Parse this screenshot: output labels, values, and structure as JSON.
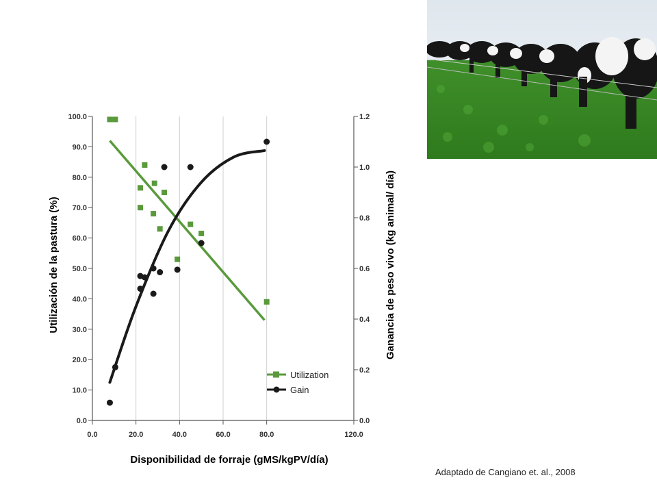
{
  "chart_data": {
    "type": "scatter",
    "xlabel": "Disponibilidad de  forraje (gMS/kgPV/día)",
    "ylabel": "Utilización de la pastura (%)",
    "y2label": "Ganancia de peso vivo (kg animal/ día)",
    "xlim": [
      0,
      120
    ],
    "ylim": [
      0,
      100
    ],
    "y2lim": [
      0,
      1.2
    ],
    "x_ticks": [
      "0.0",
      "20.0",
      "40.0",
      "60.0",
      "80.0",
      "120.0"
    ],
    "x_tick_values": [
      0,
      20,
      40,
      60,
      80,
      120
    ],
    "y_ticks": [
      "0.0",
      "10.0",
      "20.0",
      "30.0",
      "40.0",
      "50.0",
      "60.0",
      "70.0",
      "80.0",
      "90.0",
      "100.0"
    ],
    "y_tick_values": [
      0,
      10,
      20,
      30,
      40,
      50,
      60,
      70,
      80,
      90,
      100
    ],
    "y2_ticks": [
      "0.0",
      "0.2",
      "0.4",
      "0.6",
      "0.8",
      "1.0",
      "1.2"
    ],
    "y2_tick_values": [
      0,
      0.2,
      0.4,
      0.6,
      0.8,
      1.0,
      1.2
    ],
    "legend_position": "bottom-right",
    "series": [
      {
        "name": "Utilization",
        "axis": "left",
        "color": "#5a9a3c",
        "marker": "square",
        "points": [
          [
            8,
            99
          ],
          [
            10.5,
            99
          ],
          [
            22,
            76.5
          ],
          [
            22,
            70
          ],
          [
            24,
            84
          ],
          [
            28,
            68
          ],
          [
            28.5,
            78
          ],
          [
            31,
            63
          ],
          [
            33,
            75
          ],
          [
            39,
            53
          ],
          [
            45,
            64.5
          ],
          [
            50,
            61.5
          ],
          [
            80,
            39
          ]
        ],
        "trend": [
          [
            8,
            92
          ],
          [
            79,
            33
          ]
        ]
      },
      {
        "name": "Gain",
        "axis": "right",
        "color": "#1a1a1a",
        "marker": "circle",
        "points": [
          [
            8,
            0.07
          ],
          [
            10.5,
            0.21
          ],
          [
            22,
            0.57
          ],
          [
            22,
            0.52
          ],
          [
            24,
            0.565
          ],
          [
            28,
            0.6
          ],
          [
            28,
            0.5
          ],
          [
            31,
            0.585
          ],
          [
            33,
            1.0
          ],
          [
            39,
            0.595
          ],
          [
            45,
            1.0
          ],
          [
            50,
            0.7
          ],
          [
            80,
            1.1
          ]
        ],
        "trend": [
          [
            8,
            0.15
          ],
          [
            20,
            0.45
          ],
          [
            35,
            0.75
          ],
          [
            50,
            0.94
          ],
          [
            65,
            1.04
          ],
          [
            79,
            1.065
          ]
        ]
      }
    ]
  },
  "photo": {
    "subject": "cows-grazing-pasture-photo"
  },
  "credit": "Adaptado de Cangiano et. al., 2008"
}
